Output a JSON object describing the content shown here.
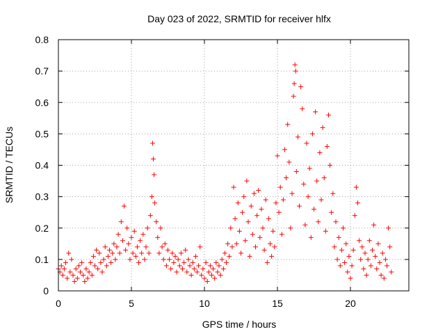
{
  "chart_data": {
    "type": "scatter",
    "title": "Day 023 of 2022, SRMTID for receiver hlfx",
    "xlabel": "GPS time / hours",
    "ylabel": "SRMTID / TECUs",
    "xlim": [
      0,
      24
    ],
    "ylim": [
      0,
      0.8
    ],
    "x_ticks": [
      0,
      5,
      10,
      15,
      20
    ],
    "x_tick_labels": [
      "0",
      "5",
      "10",
      "15",
      "20"
    ],
    "y_ticks": [
      0,
      0.1,
      0.2,
      0.3,
      0.4,
      0.5,
      0.6,
      0.7,
      0.8
    ],
    "y_tick_labels": [
      "0",
      "0.1",
      "0.2",
      "0.3",
      "0.4",
      "0.5",
      "0.6",
      "0.7",
      "0.8"
    ],
    "grid": true,
    "marker": "plus",
    "series": [
      {
        "name": "SRMTID",
        "color": "#ff0000",
        "points": [
          [
            0.0,
            0.07
          ],
          [
            0.1,
            0.06
          ],
          [
            0.2,
            0.08
          ],
          [
            0.3,
            0.05
          ],
          [
            0.4,
            0.07
          ],
          [
            0.5,
            0.09
          ],
          [
            0.6,
            0.04
          ],
          [
            0.7,
            0.12
          ],
          [
            0.8,
            0.06
          ],
          [
            0.9,
            0.1
          ],
          [
            1.0,
            0.05
          ],
          [
            1.1,
            0.03
          ],
          [
            1.2,
            0.07
          ],
          [
            1.3,
            0.04
          ],
          [
            1.4,
            0.08
          ],
          [
            1.5,
            0.06
          ],
          [
            1.6,
            0.09
          ],
          [
            1.7,
            0.05
          ],
          [
            1.8,
            0.03
          ],
          [
            1.9,
            0.07
          ],
          [
            2.0,
            0.04
          ],
          [
            2.1,
            0.06
          ],
          [
            2.2,
            0.09
          ],
          [
            2.3,
            0.05
          ],
          [
            2.4,
            0.11
          ],
          [
            2.5,
            0.08
          ],
          [
            2.6,
            0.13
          ],
          [
            2.7,
            0.07
          ],
          [
            2.8,
            0.12
          ],
          [
            2.9,
            0.09
          ],
          [
            3.0,
            0.06
          ],
          [
            3.1,
            0.1
          ],
          [
            3.2,
            0.14
          ],
          [
            3.3,
            0.08
          ],
          [
            3.4,
            0.11
          ],
          [
            3.5,
            0.13
          ],
          [
            3.6,
            0.09
          ],
          [
            3.7,
            0.12
          ],
          [
            3.8,
            0.15
          ],
          [
            3.9,
            0.1
          ],
          [
            4.0,
            0.14
          ],
          [
            4.1,
            0.18
          ],
          [
            4.2,
            0.12
          ],
          [
            4.3,
            0.22
          ],
          [
            4.4,
            0.16
          ],
          [
            4.5,
            0.27
          ],
          [
            4.6,
            0.13
          ],
          [
            4.7,
            0.2
          ],
          [
            4.8,
            0.15
          ],
          [
            4.9,
            0.1
          ],
          [
            5.0,
            0.17
          ],
          [
            5.1,
            0.12
          ],
          [
            5.2,
            0.19
          ],
          [
            5.3,
            0.11
          ],
          [
            5.4,
            0.14
          ],
          [
            5.5,
            0.09
          ],
          [
            5.6,
            0.16
          ],
          [
            5.7,
            0.12
          ],
          [
            5.8,
            0.18
          ],
          [
            5.9,
            0.1
          ],
          [
            6.0,
            0.14
          ],
          [
            6.1,
            0.2
          ],
          [
            6.2,
            0.12
          ],
          [
            6.3,
            0.24
          ],
          [
            6.4,
            0.3
          ],
          [
            6.45,
            0.47
          ],
          [
            6.5,
            0.42
          ],
          [
            6.55,
            0.37
          ],
          [
            6.6,
            0.28
          ],
          [
            6.7,
            0.22
          ],
          [
            6.8,
            0.17
          ],
          [
            6.9,
            0.12
          ],
          [
            7.0,
            0.2
          ],
          [
            7.1,
            0.14
          ],
          [
            7.2,
            0.1
          ],
          [
            7.3,
            0.15
          ],
          [
            7.4,
            0.08
          ],
          [
            7.5,
            0.13
          ],
          [
            7.6,
            0.1
          ],
          [
            7.7,
            0.07
          ],
          [
            7.8,
            0.12
          ],
          [
            7.9,
            0.09
          ],
          [
            8.0,
            0.11
          ],
          [
            8.1,
            0.06
          ],
          [
            8.2,
            0.1
          ],
          [
            8.3,
            0.08
          ],
          [
            8.4,
            0.12
          ],
          [
            8.5,
            0.07
          ],
          [
            8.6,
            0.09
          ],
          [
            8.7,
            0.13
          ],
          [
            8.8,
            0.06
          ],
          [
            8.9,
            0.1
          ],
          [
            9.0,
            0.08
          ],
          [
            9.1,
            0.05
          ],
          [
            9.2,
            0.09
          ],
          [
            9.3,
            0.07
          ],
          [
            9.4,
            0.11
          ],
          [
            9.5,
            0.06
          ],
          [
            9.6,
            0.08
          ],
          [
            9.7,
            0.14
          ],
          [
            9.8,
            0.05
          ],
          [
            9.9,
            0.07
          ],
          [
            10.0,
            0.04
          ],
          [
            10.1,
            0.09
          ],
          [
            10.2,
            0.03
          ],
          [
            10.3,
            0.06
          ],
          [
            10.4,
            0.08
          ],
          [
            10.5,
            0.05
          ],
          [
            10.6,
            0.07
          ],
          [
            10.7,
            0.04
          ],
          [
            10.8,
            0.09
          ],
          [
            10.9,
            0.06
          ],
          [
            11.0,
            0.08
          ],
          [
            11.1,
            0.05
          ],
          [
            11.2,
            0.1
          ],
          [
            11.3,
            0.07
          ],
          [
            11.4,
            0.12
          ],
          [
            11.5,
            0.09
          ],
          [
            11.6,
            0.15
          ],
          [
            11.7,
            0.11
          ],
          [
            11.8,
            0.2
          ],
          [
            11.9,
            0.14
          ],
          [
            12.0,
            0.33
          ],
          [
            12.1,
            0.23
          ],
          [
            12.2,
            0.15
          ],
          [
            12.3,
            0.28
          ],
          [
            12.4,
            0.19
          ],
          [
            12.5,
            0.12
          ],
          [
            12.6,
            0.25
          ],
          [
            12.7,
            0.3
          ],
          [
            12.8,
            0.16
          ],
          [
            12.9,
            0.35
          ],
          [
            13.0,
            0.22
          ],
          [
            13.1,
            0.11
          ],
          [
            13.2,
            0.27
          ],
          [
            13.3,
            0.18
          ],
          [
            13.4,
            0.31
          ],
          [
            13.5,
            0.14
          ],
          [
            13.6,
            0.24
          ],
          [
            13.7,
            0.32
          ],
          [
            13.8,
            0.17
          ],
          [
            13.9,
            0.26
          ],
          [
            14.0,
            0.2
          ],
          [
            14.1,
            0.13
          ],
          [
            14.2,
            0.29
          ],
          [
            14.3,
            0.09
          ],
          [
            14.4,
            0.23
          ],
          [
            14.5,
            0.15
          ],
          [
            14.6,
            0.11
          ],
          [
            14.7,
            0.19
          ],
          [
            14.8,
            0.14
          ],
          [
            14.9,
            0.28
          ],
          [
            15.0,
            0.43
          ],
          [
            15.1,
            0.25
          ],
          [
            15.2,
            0.33
          ],
          [
            15.3,
            0.18
          ],
          [
            15.4,
            0.29
          ],
          [
            15.5,
            0.45
          ],
          [
            15.6,
            0.36
          ],
          [
            15.7,
            0.53
          ],
          [
            15.8,
            0.41
          ],
          [
            15.9,
            0.2
          ],
          [
            16.0,
            0.31
          ],
          [
            16.1,
            0.62
          ],
          [
            16.15,
            0.66
          ],
          [
            16.2,
            0.72
          ],
          [
            16.25,
            0.7
          ],
          [
            16.3,
            0.38
          ],
          [
            16.4,
            0.49
          ],
          [
            16.5,
            0.27
          ],
          [
            16.6,
            0.65
          ],
          [
            16.7,
            0.58
          ],
          [
            16.8,
            0.34
          ],
          [
            16.9,
            0.21
          ],
          [
            17.0,
            0.47
          ],
          [
            17.1,
            0.3
          ],
          [
            17.2,
            0.39
          ],
          [
            17.3,
            0.17
          ],
          [
            17.4,
            0.5
          ],
          [
            17.5,
            0.26
          ],
          [
            17.6,
            0.57
          ],
          [
            17.7,
            0.35
          ],
          [
            17.8,
            0.22
          ],
          [
            17.9,
            0.44
          ],
          [
            18.0,
            0.29
          ],
          [
            18.1,
            0.52
          ],
          [
            18.2,
            0.36
          ],
          [
            18.3,
            0.19
          ],
          [
            18.4,
            0.46
          ],
          [
            18.5,
            0.56
          ],
          [
            18.6,
            0.4
          ],
          [
            18.7,
            0.25
          ],
          [
            18.8,
            0.31
          ],
          [
            18.9,
            0.14
          ],
          [
            19.0,
            0.22
          ],
          [
            19.1,
            0.1
          ],
          [
            19.2,
            0.17
          ],
          [
            19.3,
            0.08
          ],
          [
            19.4,
            0.13
          ],
          [
            19.5,
            0.2
          ],
          [
            19.6,
            0.09
          ],
          [
            19.7,
            0.15
          ],
          [
            19.8,
            0.06
          ],
          [
            19.9,
            0.11
          ],
          [
            20.0,
            0.04
          ],
          [
            20.1,
            0.08
          ],
          [
            20.2,
            0.13
          ],
          [
            20.3,
            0.24
          ],
          [
            20.4,
            0.33
          ],
          [
            20.5,
            0.28
          ],
          [
            20.6,
            0.16
          ],
          [
            20.7,
            0.1
          ],
          [
            20.8,
            0.14
          ],
          [
            20.9,
            0.07
          ],
          [
            21.0,
            0.12
          ],
          [
            21.1,
            0.05
          ],
          [
            21.2,
            0.1
          ],
          [
            21.3,
            0.16
          ],
          [
            21.4,
            0.08
          ],
          [
            21.5,
            0.13
          ],
          [
            21.6,
            0.21
          ],
          [
            21.7,
            0.11
          ],
          [
            21.8,
            0.07
          ],
          [
            21.9,
            0.15
          ],
          [
            22.0,
            0.09
          ],
          [
            22.1,
            0.05
          ],
          [
            22.2,
            0.12
          ],
          [
            22.3,
            0.04
          ],
          [
            22.4,
            0.1
          ],
          [
            22.5,
            0.08
          ],
          [
            22.6,
            0.2
          ],
          [
            22.7,
            0.14
          ],
          [
            22.8,
            0.06
          ]
        ]
      }
    ]
  }
}
